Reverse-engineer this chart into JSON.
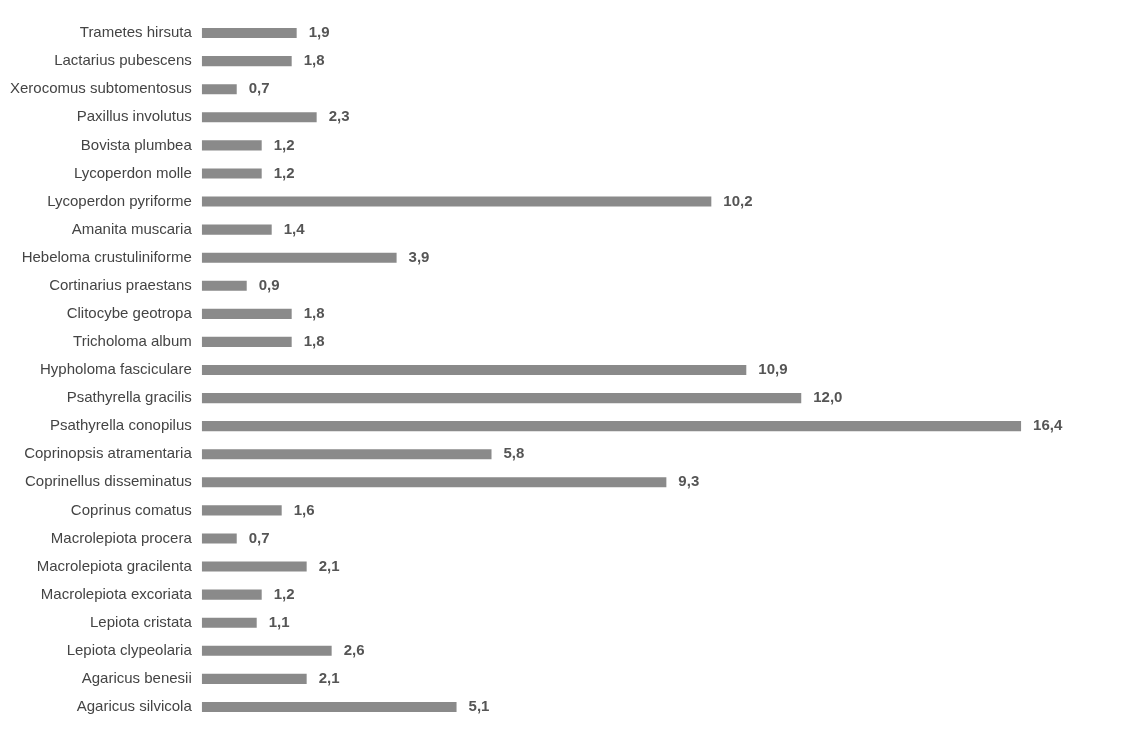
{
  "chart_data": {
    "type": "bar",
    "orientation": "horizontal",
    "tick_labels": "y",
    "categories": [
      "Trametes hirsuta",
      "Lactarius pubescens",
      "Xerocomus subtomentosus",
      "Paxillus involutus",
      "Bovista plumbea",
      "Lycoperdon molle",
      "Lycoperdon pyriforme",
      "Amanita muscaria",
      "Hebeloma crustuliniforme",
      "Cortinarius praestans",
      "Clitocybe geotropa",
      "Tricholoma album",
      "Hypholoma fasciculare",
      "Psathyrella gracilis",
      "Psathyrella conopilus",
      "Coprinopsis atramentaria",
      "Coprinellus disseminatus",
      "Coprinus comatus",
      "Macrolepiota procera",
      "Macrolepiota gracilenta",
      "Macrolepiota excoriata",
      "Lepiota cristata",
      "Lepiota clypeolaria",
      "Agaricus benesii",
      "Agaricus silvicola"
    ],
    "values": [
      1.9,
      1.8,
      0.7,
      2.3,
      1.2,
      1.2,
      10.2,
      1.4,
      3.9,
      0.9,
      1.8,
      1.8,
      10.9,
      12.0,
      16.4,
      5.8,
      9.3,
      1.6,
      0.7,
      2.1,
      1.2,
      1.1,
      2.6,
      2.1,
      5.1
    ],
    "value_labels": [
      "1,9",
      "1,8",
      "0,7",
      "2,3",
      "1,2",
      "1,2",
      "10,2",
      "1,4",
      "3,9",
      "0,9",
      "1,8",
      "1,8",
      "10,9",
      "12,0",
      "16,4",
      "5,8",
      "9,3",
      "1,6",
      "0,7",
      "2,1",
      "1,2",
      "1,1",
      "2,6",
      "2,1",
      "5,1"
    ],
    "color": "#8a8a8a"
  }
}
